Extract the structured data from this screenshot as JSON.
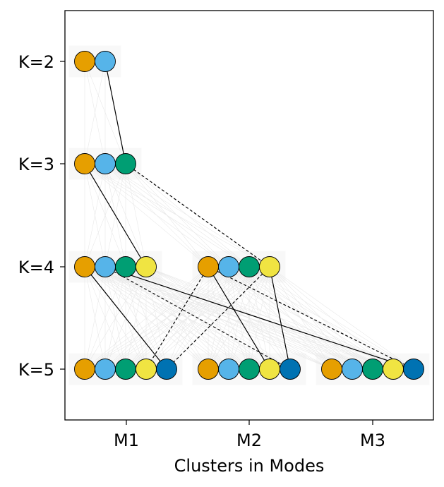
{
  "chart_data": {
    "type": "scatter",
    "title": "",
    "xlabel": "Clusters in Modes",
    "ylabel": "",
    "x_ticks": [
      "M1",
      "M2",
      "M3"
    ],
    "y_ticks": [
      "K=2",
      "K=3",
      "K=4",
      "K=5"
    ],
    "grid": false,
    "cluster_colors": [
      "#E69F00",
      "#56B4E9",
      "#009E73",
      "#F0E442",
      "#0072B2"
    ],
    "modes": [
      {
        "k": "K=2",
        "mode": "M1",
        "clusters": 2
      },
      {
        "k": "K=3",
        "mode": "M1",
        "clusters": 3
      },
      {
        "k": "K=4",
        "mode": "M1",
        "clusters": 4
      },
      {
        "k": "K=4",
        "mode": "M2",
        "clusters": 4
      },
      {
        "k": "K=5",
        "mode": "M1",
        "clusters": 5
      },
      {
        "k": "K=5",
        "mode": "M2",
        "clusters": 5
      },
      {
        "k": "K=5",
        "mode": "M3",
        "clusters": 5
      }
    ],
    "links": [
      {
        "from": [
          "K=2",
          "M1",
          2
        ],
        "to": [
          "K=3",
          "M1",
          3
        ],
        "style": "solid"
      },
      {
        "from": [
          "K=3",
          "M1",
          1
        ],
        "to": [
          "K=4",
          "M1",
          4
        ],
        "style": "solid"
      },
      {
        "from": [
          "K=3",
          "M1",
          3
        ],
        "to": [
          "K=4",
          "M2",
          4
        ],
        "style": "dashed"
      },
      {
        "from": [
          "K=4",
          "M1",
          1
        ],
        "to": [
          "K=5",
          "M1",
          5
        ],
        "style": "solid"
      },
      {
        "from": [
          "K=4",
          "M1",
          2
        ],
        "to": [
          "K=5",
          "M2",
          5
        ],
        "style": "dashed"
      },
      {
        "from": [
          "K=4",
          "M1",
          2
        ],
        "to": [
          "K=5",
          "M3",
          5
        ],
        "style": "solid"
      },
      {
        "from": [
          "K=4",
          "M2",
          1
        ],
        "to": [
          "K=5",
          "M1",
          4
        ],
        "style": "dashed"
      },
      {
        "from": [
          "K=4",
          "M2",
          1
        ],
        "to": [
          "K=5",
          "M2",
          4
        ],
        "style": "solid"
      },
      {
        "from": [
          "K=4",
          "M2",
          1
        ],
        "to": [
          "K=5",
          "M3",
          5
        ],
        "style": "dashed"
      },
      {
        "from": [
          "K=4",
          "M2",
          4
        ],
        "to": [
          "K=5",
          "M1",
          5
        ],
        "style": "dashed"
      },
      {
        "from": [
          "K=4",
          "M2",
          4
        ],
        "to": [
          "K=5",
          "M2",
          5
        ],
        "style": "solid"
      }
    ]
  }
}
